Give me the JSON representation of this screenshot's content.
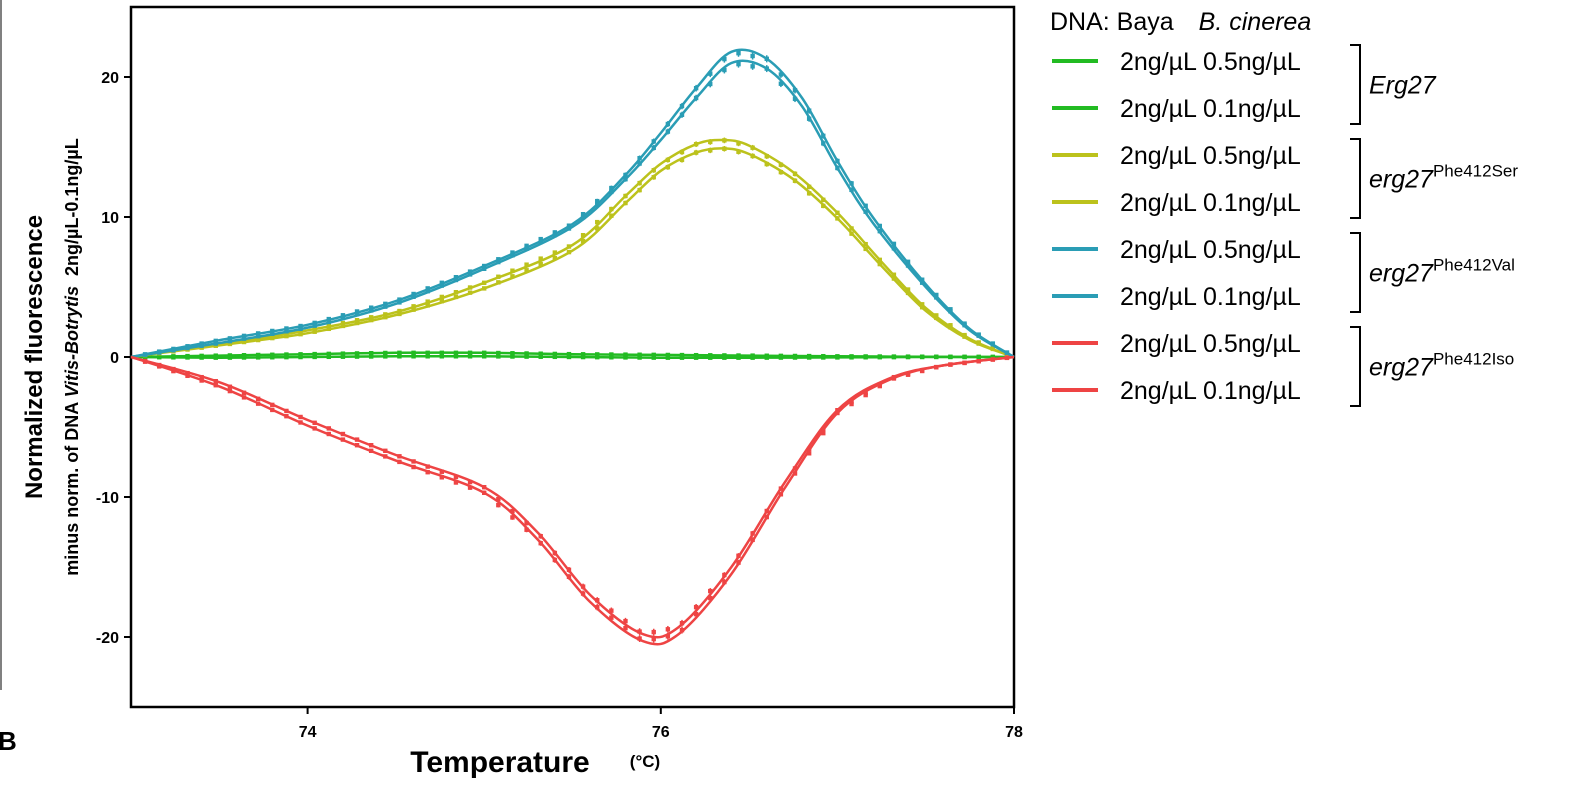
{
  "panel_letter": "B",
  "colors": {
    "Erg27": "#22bb22",
    "Phe412Ser": "#bcc21c",
    "Phe412Val": "#2a9db5",
    "Phe412Iso": "#ee4444"
  },
  "chart_data": {
    "type": "line",
    "xlabel": "Temperature",
    "xunit": "(°C)",
    "ylabel_main": "Normalized fluorescence",
    "ylabel_sub_prefix": "minus norm. of DNA ",
    "ylabel_sub_italic": "Vitis-Botrytis",
    "ylabel_sub_suffix": "  2ng/µL-0.1ng/µL",
    "xlim": [
      73,
      78
    ],
    "ylim": [
      -25,
      25
    ],
    "xticks": [
      "74",
      "76",
      "78"
    ],
    "yticks": [
      "20",
      "10",
      "0",
      "-10",
      "-20"
    ],
    "legend": {
      "header_prefix": "DNA: Baya",
      "header_italic": "B. cinerea",
      "groups": [
        {
          "key": "Erg27",
          "base": "Erg27",
          "sup": ""
        },
        {
          "key": "Phe412Ser",
          "base": "erg27",
          "sup": "Phe412Ser"
        },
        {
          "key": "Phe412Val",
          "base": "erg27",
          "sup": "Phe412Val"
        },
        {
          "key": "Phe412Iso",
          "base": "erg27",
          "sup": "Phe412Iso"
        }
      ]
    },
    "series": [
      {
        "group": "Erg27",
        "label": "2ng/µL  0.5ng/µL",
        "points": [
          [
            73,
            0
          ],
          [
            73.5,
            0.1
          ],
          [
            74,
            0.2
          ],
          [
            74.5,
            0.3
          ],
          [
            75,
            0.3
          ],
          [
            75.5,
            0.2
          ],
          [
            76,
            0.15
          ],
          [
            76.5,
            0.1
          ],
          [
            77,
            0.05
          ],
          [
            77.5,
            0.02
          ],
          [
            78,
            0
          ]
        ]
      },
      {
        "group": "Erg27",
        "label": "2ng/µL  0.1ng/µL",
        "points": [
          [
            73,
            0
          ],
          [
            73.5,
            -0.05
          ],
          [
            74,
            0
          ],
          [
            74.5,
            0.05
          ],
          [
            75,
            0.05
          ],
          [
            75.5,
            0
          ],
          [
            76,
            -0.05
          ],
          [
            76.5,
            -0.05
          ],
          [
            77,
            -0.03
          ],
          [
            77.5,
            0
          ],
          [
            78,
            0
          ]
        ]
      },
      {
        "group": "Phe412Ser",
        "label": "2ng/µL  0.5ng/µL",
        "points": [
          [
            73,
            0
          ],
          [
            73.3,
            0.6
          ],
          [
            73.6,
            1.1
          ],
          [
            74,
            1.9
          ],
          [
            74.5,
            3.2
          ],
          [
            75,
            5.3
          ],
          [
            75.5,
            8
          ],
          [
            75.8,
            11.5
          ],
          [
            76,
            13.8
          ],
          [
            76.2,
            15.2
          ],
          [
            76.35,
            15.5
          ],
          [
            76.5,
            15.1
          ],
          [
            76.75,
            13.2
          ],
          [
            77,
            10.3
          ],
          [
            77.25,
            6.8
          ],
          [
            77.5,
            3.5
          ],
          [
            77.75,
            1.3
          ],
          [
            78,
            0
          ]
        ]
      },
      {
        "group": "Phe412Ser",
        "label": "2ng/µL  0.1ng/µL",
        "points": [
          [
            73,
            0
          ],
          [
            73.3,
            0.5
          ],
          [
            73.6,
            1
          ],
          [
            74,
            1.7
          ],
          [
            74.5,
            3
          ],
          [
            75,
            4.9
          ],
          [
            75.5,
            7.6
          ],
          [
            75.8,
            11
          ],
          [
            76,
            13.3
          ],
          [
            76.2,
            14.6
          ],
          [
            76.35,
            14.9
          ],
          [
            76.5,
            14.5
          ],
          [
            76.75,
            12.7
          ],
          [
            77,
            9.9
          ],
          [
            77.25,
            6.5
          ],
          [
            77.5,
            3.3
          ],
          [
            77.75,
            1.2
          ],
          [
            78,
            0
          ]
        ]
      },
      {
        "group": "Phe412Val",
        "label": "2ng/µL  0.5ng/µL",
        "points": [
          [
            73,
            0
          ],
          [
            73.5,
            1.2
          ],
          [
            74,
            2.3
          ],
          [
            74.5,
            4
          ],
          [
            75,
            6.5
          ],
          [
            75.5,
            9.5
          ],
          [
            75.8,
            13
          ],
          [
            76,
            16
          ],
          [
            76.2,
            19.2
          ],
          [
            76.4,
            21.8
          ],
          [
            76.6,
            21.3
          ],
          [
            76.8,
            18.5
          ],
          [
            77,
            14
          ],
          [
            77.2,
            10
          ],
          [
            77.5,
            5.2
          ],
          [
            77.75,
            2
          ],
          [
            78,
            0
          ]
        ]
      },
      {
        "group": "Phe412Val",
        "label": "2ng/µL  0.1ng/µL",
        "points": [
          [
            73,
            0
          ],
          [
            73.5,
            1
          ],
          [
            74,
            2.1
          ],
          [
            74.5,
            3.8
          ],
          [
            75,
            6.3
          ],
          [
            75.5,
            9.3
          ],
          [
            75.8,
            12.7
          ],
          [
            76,
            15.5
          ],
          [
            76.2,
            18.5
          ],
          [
            76.4,
            21
          ],
          [
            76.6,
            20.6
          ],
          [
            76.8,
            17.9
          ],
          [
            77,
            13.5
          ],
          [
            77.2,
            9.6
          ],
          [
            77.5,
            5
          ],
          [
            77.75,
            1.9
          ],
          [
            78,
            0
          ]
        ]
      },
      {
        "group": "Phe412Iso",
        "label": "2ng/µL  0.5ng/µL",
        "points": [
          [
            73,
            0
          ],
          [
            73.5,
            -1.8
          ],
          [
            74,
            -4.5
          ],
          [
            74.5,
            -7
          ],
          [
            75,
            -9.3
          ],
          [
            75.3,
            -12.5
          ],
          [
            75.6,
            -17
          ],
          [
            75.9,
            -19.8
          ],
          [
            76.1,
            -19.3
          ],
          [
            76.4,
            -15
          ],
          [
            76.7,
            -9
          ],
          [
            77,
            -3.8
          ],
          [
            77.3,
            -1.5
          ],
          [
            77.6,
            -0.6
          ],
          [
            78,
            0
          ]
        ]
      },
      {
        "group": "Phe412Iso",
        "label": "2ng/µL  0.1ng/µL",
        "points": [
          [
            73,
            0
          ],
          [
            73.5,
            -2.1
          ],
          [
            74,
            -4.9
          ],
          [
            74.5,
            -7.4
          ],
          [
            75,
            -9.7
          ],
          [
            75.3,
            -13
          ],
          [
            75.6,
            -17.5
          ],
          [
            75.9,
            -20.3
          ],
          [
            76.1,
            -19.8
          ],
          [
            76.4,
            -15.5
          ],
          [
            76.7,
            -9.4
          ],
          [
            77,
            -4
          ],
          [
            77.3,
            -1.6
          ],
          [
            77.6,
            -0.6
          ],
          [
            78,
            0
          ]
        ]
      }
    ]
  }
}
